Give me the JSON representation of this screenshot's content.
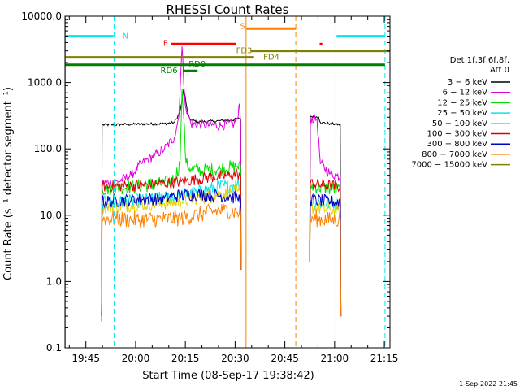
{
  "chart_data": {
    "type": "line",
    "title": "RHESSI Count Rates",
    "xlabel": "Start Time (08-Sep-17 19:38:42)",
    "ylabel": "Count Rate (s⁻¹ detector segment⁻¹)",
    "x_units": "minutes since 19:38:42",
    "xlim": [
      0,
      98
    ],
    "ylim": [
      0.1,
      10000
    ],
    "yscale": "log",
    "x_ticks": [
      {
        "t": 6.3,
        "label": "19:45"
      },
      {
        "t": 21.3,
        "label": "20:00"
      },
      {
        "t": 36.3,
        "label": "20:15"
      },
      {
        "t": 51.3,
        "label": "20:30"
      },
      {
        "t": 66.3,
        "label": "20:45"
      },
      {
        "t": 81.3,
        "label": "21:00"
      },
      {
        "t": 96.3,
        "label": "21:15"
      }
    ],
    "y_ticks": [
      {
        "v": 10000,
        "label": "10000.0"
      },
      {
        "v": 1000,
        "label": "1000.0"
      },
      {
        "v": 100,
        "label": "100.0"
      },
      {
        "v": 10,
        "label": "10.0"
      },
      {
        "v": 1,
        "label": "1.0"
      },
      {
        "v": 0.1,
        "label": "0.1"
      }
    ],
    "legend": {
      "position": "right",
      "header": [
        "Det 1f,3f,6f,8f,",
        "Att 0"
      ],
      "entries": [
        {
          "label": "3 − 6 keV",
          "color": "#000000"
        },
        {
          "label": "6 − 12 keV",
          "color": "#e000e0"
        },
        {
          "label": "12 − 25 keV",
          "color": "#00e000"
        },
        {
          "label": "25 − 50 keV",
          "color": "#00e8e8"
        },
        {
          "label": "50 − 100 keV",
          "color": "#e8d000"
        },
        {
          "label": "100 − 300 keV",
          "color": "#e00000"
        },
        {
          "label": "300 − 800 keV",
          "color": "#0000c8"
        },
        {
          "label": "800 − 7000 keV",
          "color": "#ff8000"
        },
        {
          "label": "7000 − 15000 keV",
          "color": "#808000"
        }
      ]
    },
    "series": [
      {
        "name": "3 - 6 keV",
        "color": "#000000",
        "segments": [
          [
            [
              11.0,
              0.3
            ],
            [
              11.2,
              230
            ],
            [
              20,
              235
            ],
            [
              30,
              240
            ],
            [
              33,
              250
            ],
            [
              34.6,
              350
            ],
            [
              35.2,
              500
            ],
            [
              35.8,
              800
            ],
            [
              36.3,
              600
            ],
            [
              37,
              330
            ],
            [
              38,
              270
            ],
            [
              41,
              255
            ],
            [
              45,
              262
            ],
            [
              50,
              270
            ],
            [
              52.6,
              285
            ],
            [
              53,
              280
            ],
            [
              53.1,
              2
            ]
          ],
          [
            [
              73.8,
              2.5
            ],
            [
              74,
              310
            ],
            [
              76.5,
              300
            ],
            [
              77,
              250
            ],
            [
              80,
              240
            ],
            [
              82,
              235
            ],
            [
              83,
              230
            ],
            [
              83.2,
              0.3
            ]
          ]
        ]
      },
      {
        "name": "6 - 12 keV",
        "color": "#e000e0",
        "segments": [
          [
            [
              11.0,
              0.25
            ],
            [
              11.2,
              30
            ],
            [
              16,
              32
            ],
            [
              20,
              40
            ],
            [
              23,
              60
            ],
            [
              27,
              80
            ],
            [
              30,
              100
            ],
            [
              33,
              150
            ],
            [
              34.3,
              300
            ],
            [
              35.3,
              3500
            ],
            [
              35.8,
              1000
            ],
            [
              36.5,
              400
            ],
            [
              38,
              240
            ],
            [
              42,
              230
            ],
            [
              47,
              225
            ],
            [
              51,
              240
            ],
            [
              52.2,
              300
            ],
            [
              52.6,
              480
            ],
            [
              53,
              240
            ],
            [
              53.1,
              1.5
            ]
          ],
          [
            [
              73.8,
              2
            ],
            [
              74,
              290
            ],
            [
              76,
              275
            ],
            [
              77,
              60
            ],
            [
              80,
              42
            ],
            [
              82,
              40
            ],
            [
              83,
              38
            ],
            [
              83.2,
              0.3
            ]
          ]
        ]
      },
      {
        "name": "12 - 25 keV",
        "color": "#00e000",
        "segments": [
          [
            [
              11.0,
              0.3
            ],
            [
              11.2,
              25
            ],
            [
              20,
              27
            ],
            [
              30,
              30
            ],
            [
              33,
              35
            ],
            [
              34.7,
              60
            ],
            [
              35.3,
              800
            ],
            [
              35.8,
              300
            ],
            [
              36.5,
              60
            ],
            [
              38,
              50
            ],
            [
              42,
              47
            ],
            [
              47,
              50
            ],
            [
              52,
              55
            ],
            [
              53,
              52
            ],
            [
              53.1,
              1.5
            ]
          ],
          [
            [
              73.8,
              2
            ],
            [
              74,
              28
            ],
            [
              80,
              25
            ],
            [
              83,
              24
            ],
            [
              83.2,
              0.3
            ]
          ]
        ]
      },
      {
        "name": "25 - 50 keV",
        "color": "#00e8e8",
        "segments": [
          [
            [
              11.0,
              0.3
            ],
            [
              11.2,
              15
            ],
            [
              20,
              16
            ],
            [
              30,
              18
            ],
            [
              35,
              20
            ],
            [
              40,
              22
            ],
            [
              45,
              26
            ],
            [
              50,
              28
            ],
            [
              52,
              30
            ],
            [
              53,
              28
            ],
            [
              53.1,
              1.5
            ]
          ],
          [
            [
              73.8,
              2
            ],
            [
              74,
              16
            ],
            [
              80,
              15
            ],
            [
              83,
              15
            ],
            [
              83.2,
              0.3
            ]
          ]
        ]
      },
      {
        "name": "50 - 100 keV",
        "color": "#e8d000",
        "segments": [
          [
            [
              11.0,
              0.3
            ],
            [
              11.2,
              13
            ],
            [
              20,
              14
            ],
            [
              30,
              15
            ],
            [
              35,
              16
            ],
            [
              40,
              18
            ],
            [
              45,
              20
            ],
            [
              50,
              22
            ],
            [
              52,
              23
            ],
            [
              53,
              22
            ],
            [
              53.1,
              1.5
            ]
          ],
          [
            [
              73.8,
              2
            ],
            [
              74,
              13
            ],
            [
              80,
              12
            ],
            [
              83,
              12
            ],
            [
              83.2,
              0.3
            ]
          ]
        ]
      },
      {
        "name": "100 - 300 keV",
        "color": "#e00000",
        "segments": [
          [
            [
              11.0,
              0.3
            ],
            [
              11.2,
              27
            ],
            [
              20,
              28
            ],
            [
              30,
              30
            ],
            [
              35,
              32
            ],
            [
              40,
              35
            ],
            [
              45,
              38
            ],
            [
              50,
              40
            ],
            [
              52,
              42
            ],
            [
              53,
              40
            ],
            [
              53.1,
              1.5
            ]
          ],
          [
            [
              73.8,
              2
            ],
            [
              74,
              30
            ],
            [
              80,
              28
            ],
            [
              83,
              27
            ],
            [
              83.2,
              0.3
            ]
          ]
        ]
      },
      {
        "name": "300 - 800 keV",
        "color": "#0000c8",
        "segments": [
          [
            [
              11.0,
              0.3
            ],
            [
              11.2,
              16
            ],
            [
              20,
              17
            ],
            [
              30,
              18
            ],
            [
              35,
              20
            ],
            [
              40,
              21
            ],
            [
              45,
              20
            ],
            [
              50,
              19
            ],
            [
              52,
              18
            ],
            [
              53,
              18
            ],
            [
              53.1,
              1.5
            ]
          ],
          [
            [
              73.8,
              2
            ],
            [
              74,
              17
            ],
            [
              80,
              16
            ],
            [
              83,
              16
            ],
            [
              83.2,
              0.3
            ]
          ]
        ]
      },
      {
        "name": "800 - 7000 keV",
        "color": "#ff8000",
        "segments": [
          [
            [
              11.0,
              0.25
            ],
            [
              11.2,
              9
            ],
            [
              20,
              8.5
            ],
            [
              30,
              8.8
            ],
            [
              35,
              9
            ],
            [
              40,
              10
            ],
            [
              45,
              11.5
            ],
            [
              48,
              12
            ],
            [
              52,
              11
            ],
            [
              53,
              11
            ],
            [
              53.1,
              1.5
            ]
          ],
          [
            [
              73.8,
              2
            ],
            [
              74,
              9
            ],
            [
              80,
              8.5
            ],
            [
              83,
              8.5
            ],
            [
              83.2,
              0.3
            ]
          ]
        ]
      }
    ],
    "noise": {
      "3 - 6 keV": 0.04,
      "6 - 12 keV": 0.15,
      "12 - 25 keV": 0.22,
      "25 - 50 keV": 0.22,
      "50 - 100 keV": 0.2,
      "100 - 300 keV": 0.18,
      "300 - 800 keV": 0.2,
      "800 - 7000 keV": 0.25
    },
    "vertical_lines": [
      {
        "t": 0.1,
        "color": "#00e8e8",
        "style": "solid"
      },
      {
        "t": 14.8,
        "color": "#00e8e8",
        "style": "dashed"
      },
      {
        "t": 54.6,
        "color": "#ff8000",
        "style": "solid"
      },
      {
        "t": 69.6,
        "color": "#ff8000",
        "style": "dashed"
      },
      {
        "t": 81.7,
        "color": "#00e8e8",
        "style": "solid"
      },
      {
        "t": 96.5,
        "color": "#00e8e8",
        "style": "dashed"
      }
    ],
    "interval_bars": [
      {
        "label": "N",
        "color": "#00e8e8",
        "t0": 0.1,
        "t1": 14.6,
        "y": 5000,
        "label_t": 17.3,
        "label_y": 5000
      },
      {
        "label": "N",
        "color": "#00e8e8",
        "t0": 81.9,
        "t1": 96.5,
        "y": 5000,
        "label_t": null,
        "label_y": null
      },
      {
        "label": "S",
        "color": "#ff8000",
        "t0": 54.6,
        "t1": 69.6,
        "y": 6500,
        "label_t": 52.8,
        "label_y": 7000
      },
      {
        "label": "F",
        "color": "#ff0000",
        "t0": 32.0,
        "t1": 51.5,
        "y": 3800,
        "label_t": 29.6,
        "label_y": 3900
      },
      {
        "label": "",
        "color": "#ff0000",
        "t0": 76.8,
        "t1": 77.6,
        "y": 3800,
        "label_t": null,
        "label_y": null
      },
      {
        "label": "FD3",
        "color": "#808000",
        "t0": 56.0,
        "t1": 98.0,
        "y": 3000,
        "label_t": 51.6,
        "label_y": 3000
      },
      {
        "label": "FD4",
        "color": "#808000",
        "t0": 0.1,
        "t1": 57.0,
        "y": 2400,
        "label_t": 59.8,
        "label_y": 2400
      },
      {
        "label": "RD0",
        "color": "#008000",
        "t0": 0.1,
        "t1": 96.5,
        "y": 1850,
        "label_t": 37.3,
        "label_y": 1900
      },
      {
        "label": "RD6",
        "color": "#008000",
        "t0": 35.5,
        "t1": 40.0,
        "y": 1500,
        "label_t": 28.8,
        "label_y": 1500
      }
    ],
    "footer_timestamp": "1-Sep-2022 21:45"
  }
}
